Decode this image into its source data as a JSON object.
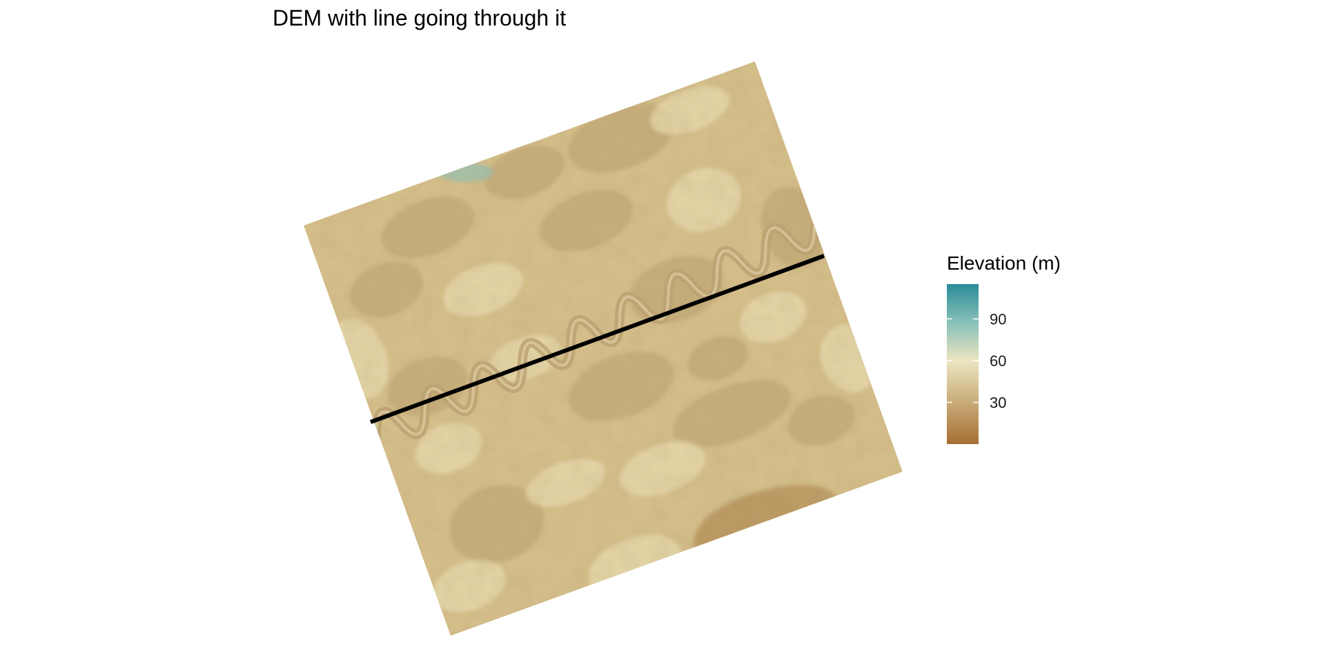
{
  "title": "DEM with line going through it",
  "legend": {
    "title": "Elevation (m)",
    "min": 0,
    "max": 115,
    "ticks": [
      {
        "value": 30,
        "label": "30"
      },
      {
        "value": 60,
        "label": "60"
      },
      {
        "value": 90,
        "label": "90"
      }
    ],
    "colors": {
      "low": "#a66f32",
      "low_mid": "#c8ab78",
      "mid": "#ece5c2",
      "high_mid": "#88c0b8",
      "high": "#2a8c98"
    }
  },
  "raster": {
    "base_color": "#d3bd89",
    "dark_color": "#bca272",
    "light_color": "#ebe0b6"
  },
  "line": {
    "color": "#000000"
  }
}
